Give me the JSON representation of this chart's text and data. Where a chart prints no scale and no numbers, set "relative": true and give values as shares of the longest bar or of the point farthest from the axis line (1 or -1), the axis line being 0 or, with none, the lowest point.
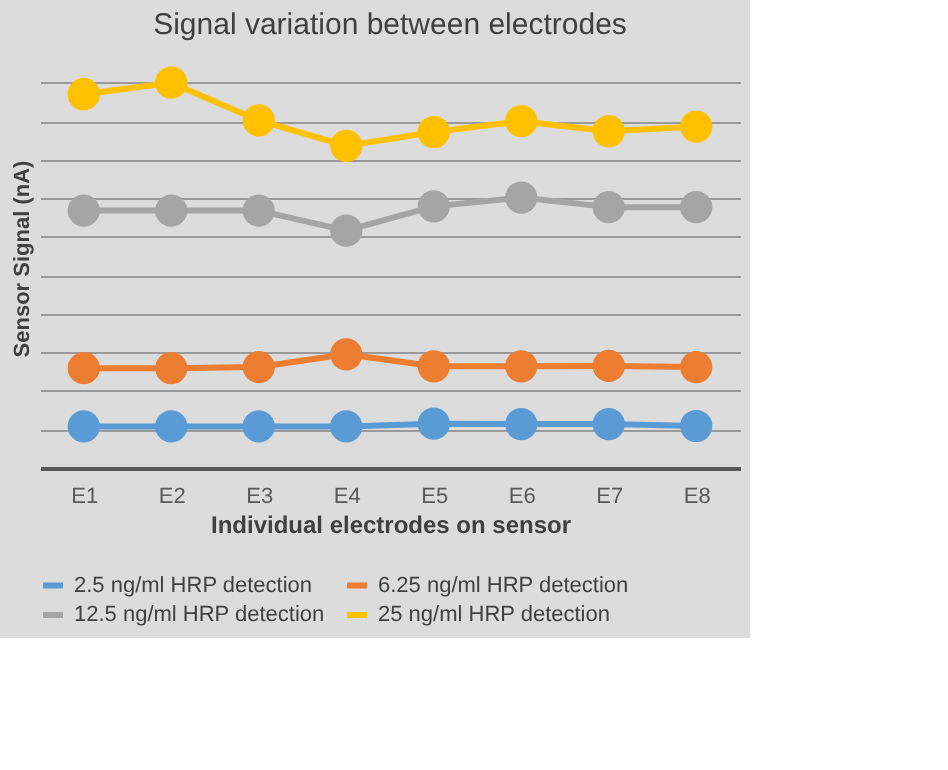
{
  "chart_data": {
    "type": "line",
    "title": "Signal variation between electrodes",
    "xlabel": "Individual electrodes on sensor",
    "ylabel": "Sensor Signal (nA)",
    "categories": [
      "E1",
      "E2",
      "E3",
      "E4",
      "E5",
      "E6",
      "E7",
      "E8"
    ],
    "relative": true,
    "grid": "y",
    "legend": "bottom",
    "marker": "circle",
    "line_style": "solid",
    "series": [
      {
        "name": "2.5 ng/ml HRP detection",
        "color": "#5b9bd5",
        "values": [
          0.108,
          0.108,
          0.108,
          0.108,
          0.115,
          0.114,
          0.114,
          0.109
        ]
      },
      {
        "name": "6.25 ng/ml HRP detection",
        "color": "#ed7d31",
        "values": [
          0.259,
          0.259,
          0.262,
          0.295,
          0.264,
          0.264,
          0.265,
          0.262
        ]
      },
      {
        "name": "12.5 ng/ml HRP detection",
        "color": "#a5a5a5",
        "values": [
          0.668,
          0.668,
          0.668,
          0.616,
          0.679,
          0.702,
          0.677,
          0.677
        ]
      },
      {
        "name": "25 ng/ml HRP detection",
        "color": "#ffc000",
        "values": [
          0.97,
          1,
          0.902,
          0.836,
          0.872,
          0.9,
          0.874,
          0.886
        ]
      }
    ]
  }
}
